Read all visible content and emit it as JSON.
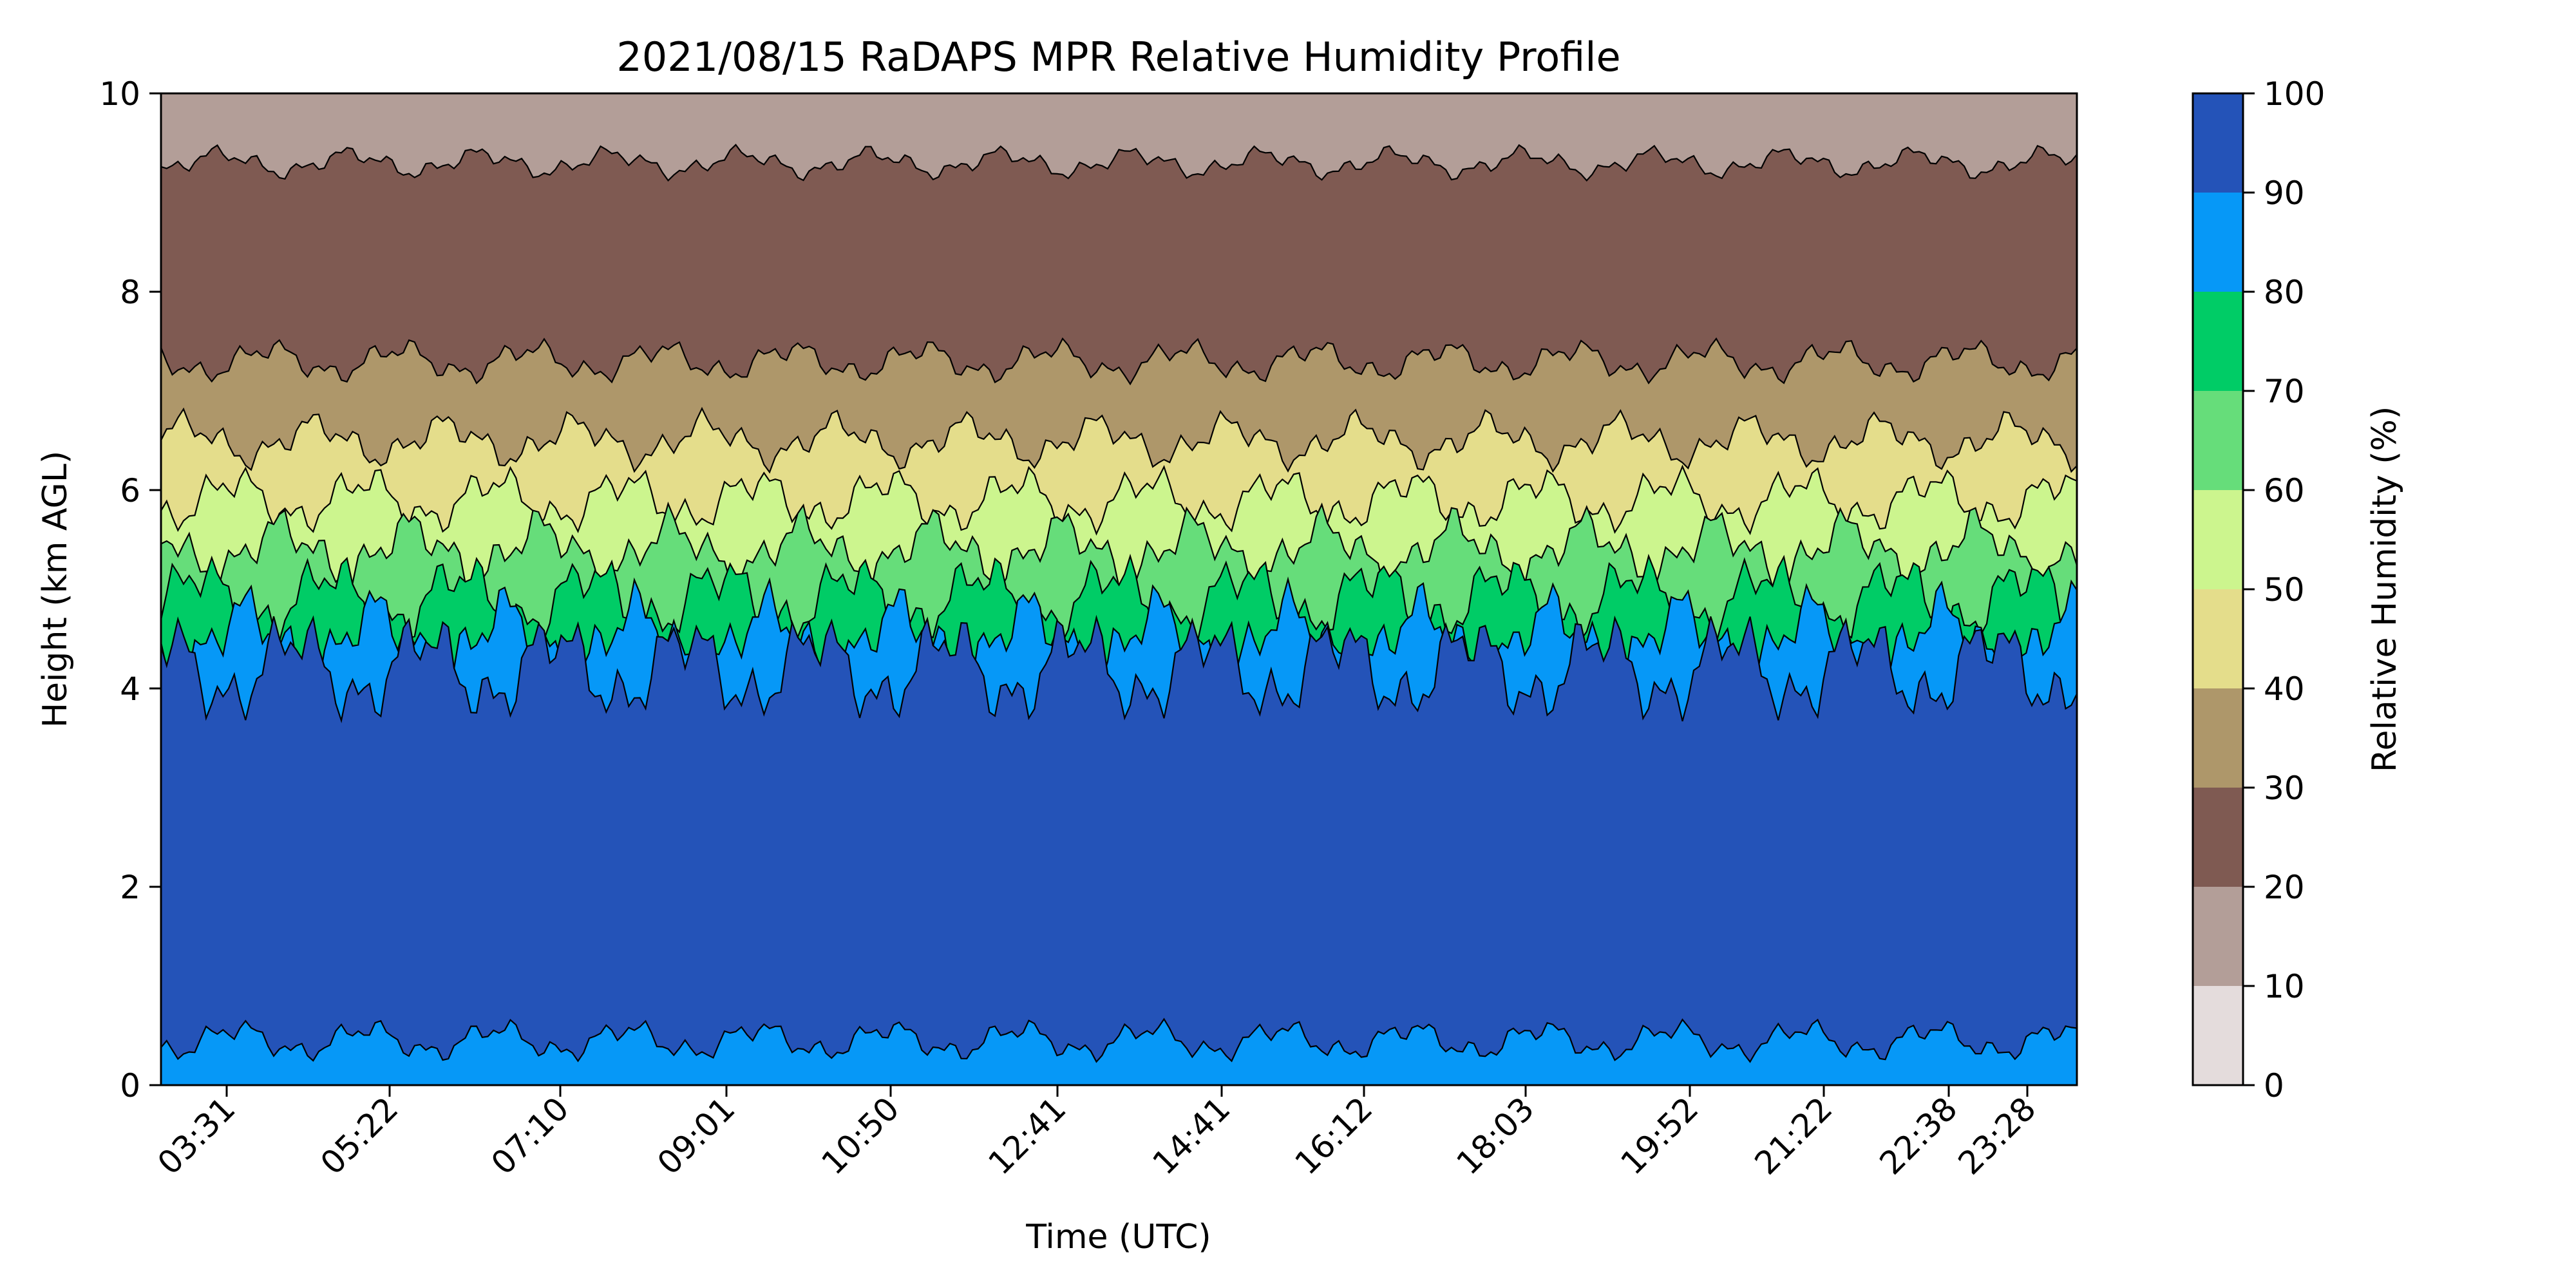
{
  "chart_data": {
    "type": "heatmap",
    "subtype": "filled-contour",
    "title": "2021/08/15 RaDAPS MPR Relative Humidity Profile",
    "xlabel": "Time (UTC)",
    "ylabel": "Height (km AGL)",
    "x_ticks": [
      "03:31",
      "05:22",
      "07:10",
      "09:01",
      "10:50",
      "12:41",
      "14:41",
      "16:12",
      "18:03",
      "19:52",
      "21:22",
      "22:38",
      "23:28"
    ],
    "ylim": [
      0,
      10
    ],
    "y_ticks": [
      0,
      2,
      4,
      6,
      8,
      10
    ],
    "grid": false,
    "colorbar": {
      "label": "Relative Humidity (%)",
      "ticks": [
        0,
        10,
        20,
        30,
        40,
        50,
        60,
        70,
        80,
        90,
        100
      ],
      "levels": [
        {
          "range": [
            0,
            10
          ],
          "color": "#e4dcdc"
        },
        {
          "range": [
            10,
            20
          ],
          "color": "#b39e98"
        },
        {
          "range": [
            20,
            30
          ],
          "color": "#7f5a52"
        },
        {
          "range": [
            30,
            40
          ],
          "color": "#ae976a"
        },
        {
          "range": [
            40,
            50
          ],
          "color": "#e4dd8b"
        },
        {
          "range": [
            50,
            60
          ],
          "color": "#ccf58e"
        },
        {
          "range": [
            60,
            70
          ],
          "color": "#66dd7a"
        },
        {
          "range": [
            70,
            80
          ],
          "color": "#00cc66"
        },
        {
          "range": [
            80,
            90
          ],
          "color": "#0698f7"
        },
        {
          "range": [
            90,
            100
          ],
          "color": "#2453b8"
        }
      ]
    },
    "profile_levels_km": [
      {
        "rh_boundary": 90,
        "typical_height_km": 4.2
      },
      {
        "rh_boundary": 80,
        "typical_height_km": 4.5
      },
      {
        "rh_boundary": 70,
        "typical_height_km": 4.9
      },
      {
        "rh_boundary": 60,
        "typical_height_km": 5.4
      },
      {
        "rh_boundary": 50,
        "typical_height_km": 5.9
      },
      {
        "rh_boundary": 40,
        "typical_height_km": 6.5
      },
      {
        "rh_boundary": 30,
        "typical_height_km": 7.3
      },
      {
        "rh_boundary": 20,
        "typical_height_km": 9.3
      }
    ]
  }
}
